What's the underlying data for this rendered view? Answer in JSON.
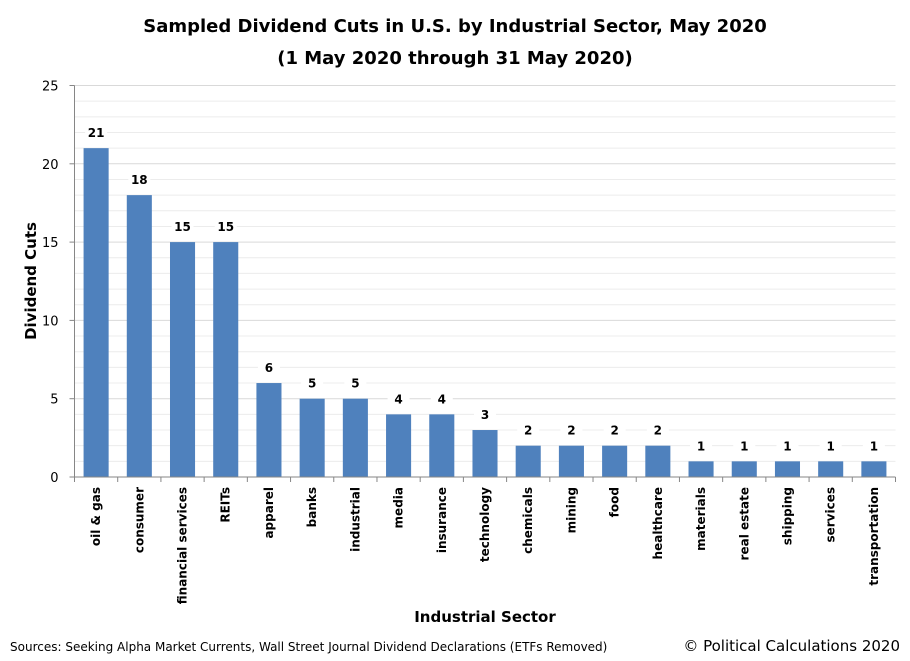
{
  "chart_data": {
    "type": "bar",
    "title": "Sampled Dividend Cuts in U.S. by Industrial Sector, May 2020",
    "subtitle": "(1 May 2020 through 31 May 2020)",
    "xlabel": "Industrial Sector",
    "ylabel": "Dividend Cuts",
    "ylim": [
      0,
      25
    ],
    "yticks": [
      0,
      5,
      10,
      15,
      20,
      25
    ],
    "grid": true,
    "categories": [
      "oil & gas",
      "consumer",
      "financial services",
      "REITs",
      "apparel",
      "banks",
      "industrial",
      "media",
      "insurance",
      "technology",
      "chemicals",
      "mining",
      "food",
      "healthcare",
      "materials",
      "real estate",
      "shipping",
      "services",
      "transportation"
    ],
    "values": [
      21,
      18,
      15,
      15,
      6,
      5,
      5,
      4,
      4,
      3,
      2,
      2,
      2,
      2,
      1,
      1,
      1,
      1,
      1
    ],
    "bar_color": "#4F81BD"
  },
  "footer": {
    "sources": "Sources: Seeking Alpha Market Currents, Wall Street Journal Dividend Declarations (ETFs Removed)",
    "copyright": "© Political Calculations 2020"
  }
}
